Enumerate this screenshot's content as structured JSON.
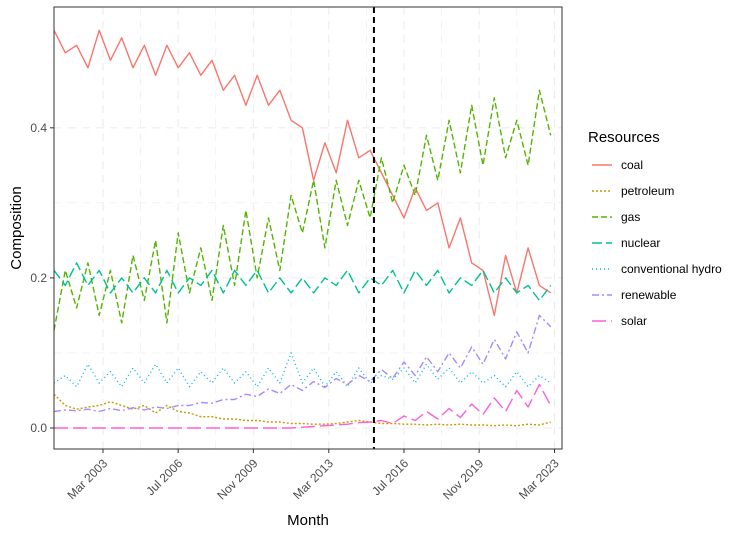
{
  "chart_data": {
    "type": "line",
    "title": "",
    "xlabel": "Month",
    "ylabel": "Composition",
    "xlim": [
      2001.0,
      2023.5
    ],
    "ylim": [
      -0.028,
      0.561
    ],
    "x_ticks": [
      {
        "value": 2003.17,
        "label": "Mar 2003"
      },
      {
        "value": 2006.5,
        "label": "Jul 2006"
      },
      {
        "value": 2009.83,
        "label": "Nov 2009"
      },
      {
        "value": 2013.17,
        "label": "Mar 2013"
      },
      {
        "value": 2016.5,
        "label": "Jul 2016"
      },
      {
        "value": 2019.83,
        "label": "Nov 2019"
      },
      {
        "value": 2023.17,
        "label": "Mar 2023"
      }
    ],
    "y_ticks": [
      {
        "value": 0.0,
        "label": "0.0"
      },
      {
        "value": 0.2,
        "label": "0.2"
      },
      {
        "value": 0.4,
        "label": "0.4"
      }
    ],
    "vline": {
      "x": 2015.17,
      "style": "dashed"
    },
    "legend": {
      "title": "Resources",
      "position": "right"
    },
    "grid": true,
    "series": [
      {
        "name": "coal",
        "color": "#f8766d",
        "dash": "",
        "x": [
          2001.0,
          2001.5,
          2002.0,
          2002.5,
          2003.0,
          2003.5,
          2004.0,
          2004.5,
          2005.0,
          2005.5,
          2006.0,
          2006.5,
          2007.0,
          2007.5,
          2008.0,
          2008.5,
          2009.0,
          2009.5,
          2010.0,
          2010.5,
          2011.0,
          2011.5,
          2012.0,
          2012.5,
          2013.0,
          2013.5,
          2014.0,
          2014.5,
          2015.0,
          2015.5,
          2016.0,
          2016.5,
          2017.0,
          2017.5,
          2018.0,
          2018.5,
          2019.0,
          2019.5,
          2020.0,
          2020.5,
          2021.0,
          2021.5,
          2022.0,
          2022.5,
          2023.0
        ],
        "y": [
          0.53,
          0.5,
          0.51,
          0.48,
          0.53,
          0.49,
          0.52,
          0.48,
          0.51,
          0.47,
          0.51,
          0.48,
          0.5,
          0.47,
          0.49,
          0.45,
          0.47,
          0.43,
          0.47,
          0.43,
          0.45,
          0.41,
          0.4,
          0.33,
          0.38,
          0.34,
          0.41,
          0.36,
          0.37,
          0.34,
          0.31,
          0.28,
          0.32,
          0.29,
          0.3,
          0.24,
          0.28,
          0.22,
          0.21,
          0.15,
          0.23,
          0.18,
          0.24,
          0.19,
          0.18
        ]
      },
      {
        "name": "petroleum",
        "color": "#c49a00",
        "dash": "2,2",
        "x": [
          2001.0,
          2001.5,
          2002.0,
          2002.5,
          2003.0,
          2003.5,
          2004.0,
          2004.5,
          2005.0,
          2005.5,
          2006.0,
          2006.5,
          2007.0,
          2007.5,
          2008.0,
          2008.5,
          2009.0,
          2009.5,
          2010.0,
          2010.5,
          2011.0,
          2011.5,
          2012.0,
          2012.5,
          2013.0,
          2013.5,
          2014.0,
          2014.5,
          2015.0,
          2015.5,
          2016.0,
          2016.5,
          2017.0,
          2017.5,
          2018.0,
          2018.5,
          2019.0,
          2019.5,
          2020.0,
          2020.5,
          2021.0,
          2021.5,
          2022.0,
          2022.5,
          2023.0
        ],
        "y": [
          0.045,
          0.03,
          0.025,
          0.028,
          0.03,
          0.035,
          0.03,
          0.025,
          0.03,
          0.02,
          0.03,
          0.022,
          0.02,
          0.015,
          0.015,
          0.012,
          0.012,
          0.01,
          0.01,
          0.008,
          0.008,
          0.006,
          0.006,
          0.005,
          0.005,
          0.006,
          0.008,
          0.01,
          0.008,
          0.006,
          0.006,
          0.005,
          0.005,
          0.004,
          0.005,
          0.004,
          0.005,
          0.004,
          0.004,
          0.003,
          0.004,
          0.003,
          0.005,
          0.004,
          0.008
        ]
      },
      {
        "name": "gas",
        "color": "#53b400",
        "dash": "6,3",
        "x": [
          2001.0,
          2001.5,
          2002.0,
          2002.5,
          2003.0,
          2003.5,
          2004.0,
          2004.5,
          2005.0,
          2005.5,
          2006.0,
          2006.5,
          2007.0,
          2007.5,
          2008.0,
          2008.5,
          2009.0,
          2009.5,
          2010.0,
          2010.5,
          2011.0,
          2011.5,
          2012.0,
          2012.5,
          2013.0,
          2013.5,
          2014.0,
          2014.5,
          2015.0,
          2015.5,
          2016.0,
          2016.5,
          2017.0,
          2017.5,
          2018.0,
          2018.5,
          2019.0,
          2019.5,
          2020.0,
          2020.5,
          2021.0,
          2021.5,
          2022.0,
          2022.5,
          2023.0
        ],
        "y": [
          0.13,
          0.21,
          0.16,
          0.22,
          0.15,
          0.21,
          0.14,
          0.23,
          0.17,
          0.25,
          0.14,
          0.26,
          0.18,
          0.24,
          0.17,
          0.27,
          0.19,
          0.29,
          0.2,
          0.28,
          0.21,
          0.31,
          0.26,
          0.33,
          0.24,
          0.33,
          0.27,
          0.33,
          0.28,
          0.36,
          0.3,
          0.35,
          0.31,
          0.39,
          0.33,
          0.41,
          0.34,
          0.43,
          0.35,
          0.44,
          0.36,
          0.41,
          0.35,
          0.45,
          0.39
        ]
      },
      {
        "name": "nuclear",
        "color": "#00c094",
        "dash": "10,4",
        "x": [
          2001.0,
          2001.5,
          2002.0,
          2002.5,
          2003.0,
          2003.5,
          2004.0,
          2004.5,
          2005.0,
          2005.5,
          2006.0,
          2006.5,
          2007.0,
          2007.5,
          2008.0,
          2008.5,
          2009.0,
          2009.5,
          2010.0,
          2010.5,
          2011.0,
          2011.5,
          2012.0,
          2012.5,
          2013.0,
          2013.5,
          2014.0,
          2014.5,
          2015.0,
          2015.5,
          2016.0,
          2016.5,
          2017.0,
          2017.5,
          2018.0,
          2018.5,
          2019.0,
          2019.5,
          2020.0,
          2020.5,
          2021.0,
          2021.5,
          2022.0,
          2022.5,
          2023.0
        ],
        "y": [
          0.21,
          0.19,
          0.22,
          0.19,
          0.21,
          0.18,
          0.2,
          0.18,
          0.2,
          0.18,
          0.21,
          0.18,
          0.2,
          0.19,
          0.21,
          0.18,
          0.21,
          0.19,
          0.21,
          0.18,
          0.2,
          0.18,
          0.2,
          0.18,
          0.2,
          0.19,
          0.21,
          0.18,
          0.2,
          0.19,
          0.21,
          0.18,
          0.21,
          0.19,
          0.21,
          0.18,
          0.2,
          0.19,
          0.21,
          0.18,
          0.2,
          0.18,
          0.19,
          0.17,
          0.19
        ]
      },
      {
        "name": "conventional hydro",
        "color": "#00b6eb",
        "dash": "1,3",
        "x": [
          2001.0,
          2001.5,
          2002.0,
          2002.5,
          2003.0,
          2003.5,
          2004.0,
          2004.5,
          2005.0,
          2005.5,
          2006.0,
          2006.5,
          2007.0,
          2007.5,
          2008.0,
          2008.5,
          2009.0,
          2009.5,
          2010.0,
          2010.5,
          2011.0,
          2011.5,
          2012.0,
          2012.5,
          2013.0,
          2013.5,
          2014.0,
          2014.5,
          2015.0,
          2015.5,
          2016.0,
          2016.5,
          2017.0,
          2017.5,
          2018.0,
          2018.5,
          2019.0,
          2019.5,
          2020.0,
          2020.5,
          2021.0,
          2021.5,
          2022.0,
          2022.5,
          2023.0
        ],
        "y": [
          0.06,
          0.07,
          0.055,
          0.085,
          0.06,
          0.075,
          0.055,
          0.08,
          0.06,
          0.085,
          0.06,
          0.08,
          0.055,
          0.075,
          0.06,
          0.08,
          0.06,
          0.075,
          0.055,
          0.08,
          0.06,
          0.1,
          0.06,
          0.08,
          0.055,
          0.075,
          0.055,
          0.08,
          0.06,
          0.07,
          0.065,
          0.08,
          0.06,
          0.085,
          0.065,
          0.08,
          0.06,
          0.075,
          0.06,
          0.07,
          0.055,
          0.075,
          0.055,
          0.07,
          0.06
        ]
      },
      {
        "name": "renewable",
        "color": "#a58aff",
        "dash": "7,3,2,3",
        "x": [
          2001.0,
          2001.5,
          2002.0,
          2002.5,
          2003.0,
          2003.5,
          2004.0,
          2004.5,
          2005.0,
          2005.5,
          2006.0,
          2006.5,
          2007.0,
          2007.5,
          2008.0,
          2008.5,
          2009.0,
          2009.5,
          2010.0,
          2010.5,
          2011.0,
          2011.5,
          2012.0,
          2012.5,
          2013.0,
          2013.5,
          2014.0,
          2014.5,
          2015.0,
          2015.5,
          2016.0,
          2016.5,
          2017.0,
          2017.5,
          2018.0,
          2018.5,
          2019.0,
          2019.5,
          2020.0,
          2020.5,
          2021.0,
          2021.5,
          2022.0,
          2022.5,
          2023.0
        ],
        "y": [
          0.022,
          0.024,
          0.023,
          0.025,
          0.022,
          0.026,
          0.023,
          0.027,
          0.024,
          0.028,
          0.026,
          0.03,
          0.03,
          0.034,
          0.033,
          0.038,
          0.038,
          0.045,
          0.042,
          0.052,
          0.046,
          0.058,
          0.05,
          0.062,
          0.054,
          0.066,
          0.058,
          0.07,
          0.062,
          0.078,
          0.066,
          0.088,
          0.07,
          0.095,
          0.075,
          0.1,
          0.08,
          0.108,
          0.085,
          0.118,
          0.092,
          0.128,
          0.1,
          0.15,
          0.135
        ]
      },
      {
        "name": "solar",
        "color": "#fb61d7",
        "dash": "14,5",
        "x": [
          2001.0,
          2001.5,
          2002.0,
          2002.5,
          2003.0,
          2003.5,
          2004.0,
          2004.5,
          2005.0,
          2005.5,
          2006.0,
          2006.5,
          2007.0,
          2007.5,
          2008.0,
          2008.5,
          2009.0,
          2009.5,
          2010.0,
          2010.5,
          2011.0,
          2011.5,
          2012.0,
          2012.5,
          2013.0,
          2013.5,
          2014.0,
          2014.5,
          2015.0,
          2015.5,
          2016.0,
          2016.5,
          2017.0,
          2017.5,
          2018.0,
          2018.5,
          2019.0,
          2019.5,
          2020.0,
          2020.5,
          2021.0,
          2021.5,
          2022.0,
          2022.5,
          2023.0
        ],
        "y": [
          0.0,
          0.0,
          0.0,
          0.0,
          0.0,
          0.0,
          0.0,
          0.0,
          0.0,
          0.0,
          0.0,
          0.0,
          0.0,
          0.0,
          0.0,
          0.0,
          0.0,
          0.0,
          0.0,
          0.0,
          0.0,
          0.0,
          0.001,
          0.002,
          0.003,
          0.004,
          0.005,
          0.007,
          0.008,
          0.01,
          0.006,
          0.016,
          0.01,
          0.022,
          0.012,
          0.026,
          0.014,
          0.032,
          0.018,
          0.04,
          0.022,
          0.05,
          0.028,
          0.058,
          0.03
        ]
      }
    ]
  }
}
